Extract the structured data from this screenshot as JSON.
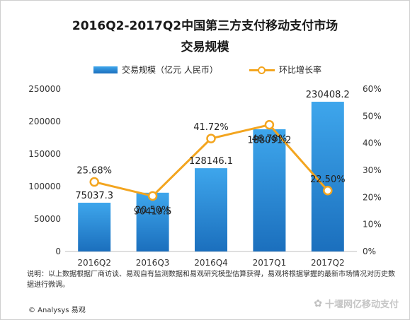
{
  "chart_data": {
    "type": "bar",
    "title_line1": "2016Q2-2017Q2中国第三方支付移动支付市场",
    "title_line2": "交易规模",
    "categories": [
      "2016Q2",
      "2016Q3",
      "2016Q4",
      "2017Q1",
      "2017Q2"
    ],
    "series": [
      {
        "name": "交易规模（亿元 人民币）",
        "kind": "bar",
        "axis": "left",
        "values": [
          75037.3,
          90419.5,
          128146.1,
          188091.2,
          230408.2
        ],
        "labels": [
          "75037.3",
          "90419.5",
          "128146.1",
          "188091.2",
          "230408.2"
        ]
      },
      {
        "name": "环比增长率",
        "kind": "line",
        "axis": "right",
        "values": [
          25.68,
          20.5,
          41.72,
          46.78,
          22.5
        ],
        "labels": [
          "25.68%",
          "20.50%",
          "41.72%",
          "46.78%",
          "22.50%"
        ]
      }
    ],
    "ylim_left": [
      0,
      250000
    ],
    "yticks_left": [
      "0",
      "50000",
      "100000",
      "150000",
      "200000",
      "250000"
    ],
    "ylim_right": [
      0,
      60
    ],
    "yticks_right": [
      "0%",
      "10%",
      "20%",
      "30%",
      "40%",
      "50%",
      "60%"
    ],
    "colors": {
      "bar": "#2a88d8",
      "line": "#f3a51f"
    },
    "legend_position": "top",
    "grid": false
  },
  "note": "说明：以上数据根据厂商访谈、易观自有监测数据和易观研究模型估算获得，易观将根据掌握的最新市场情况对历史数据进行微调。",
  "copyright": "© Analysys 易观",
  "watermark": "十堰网亿移动支付",
  "watermark_icon": "wechat-icon"
}
